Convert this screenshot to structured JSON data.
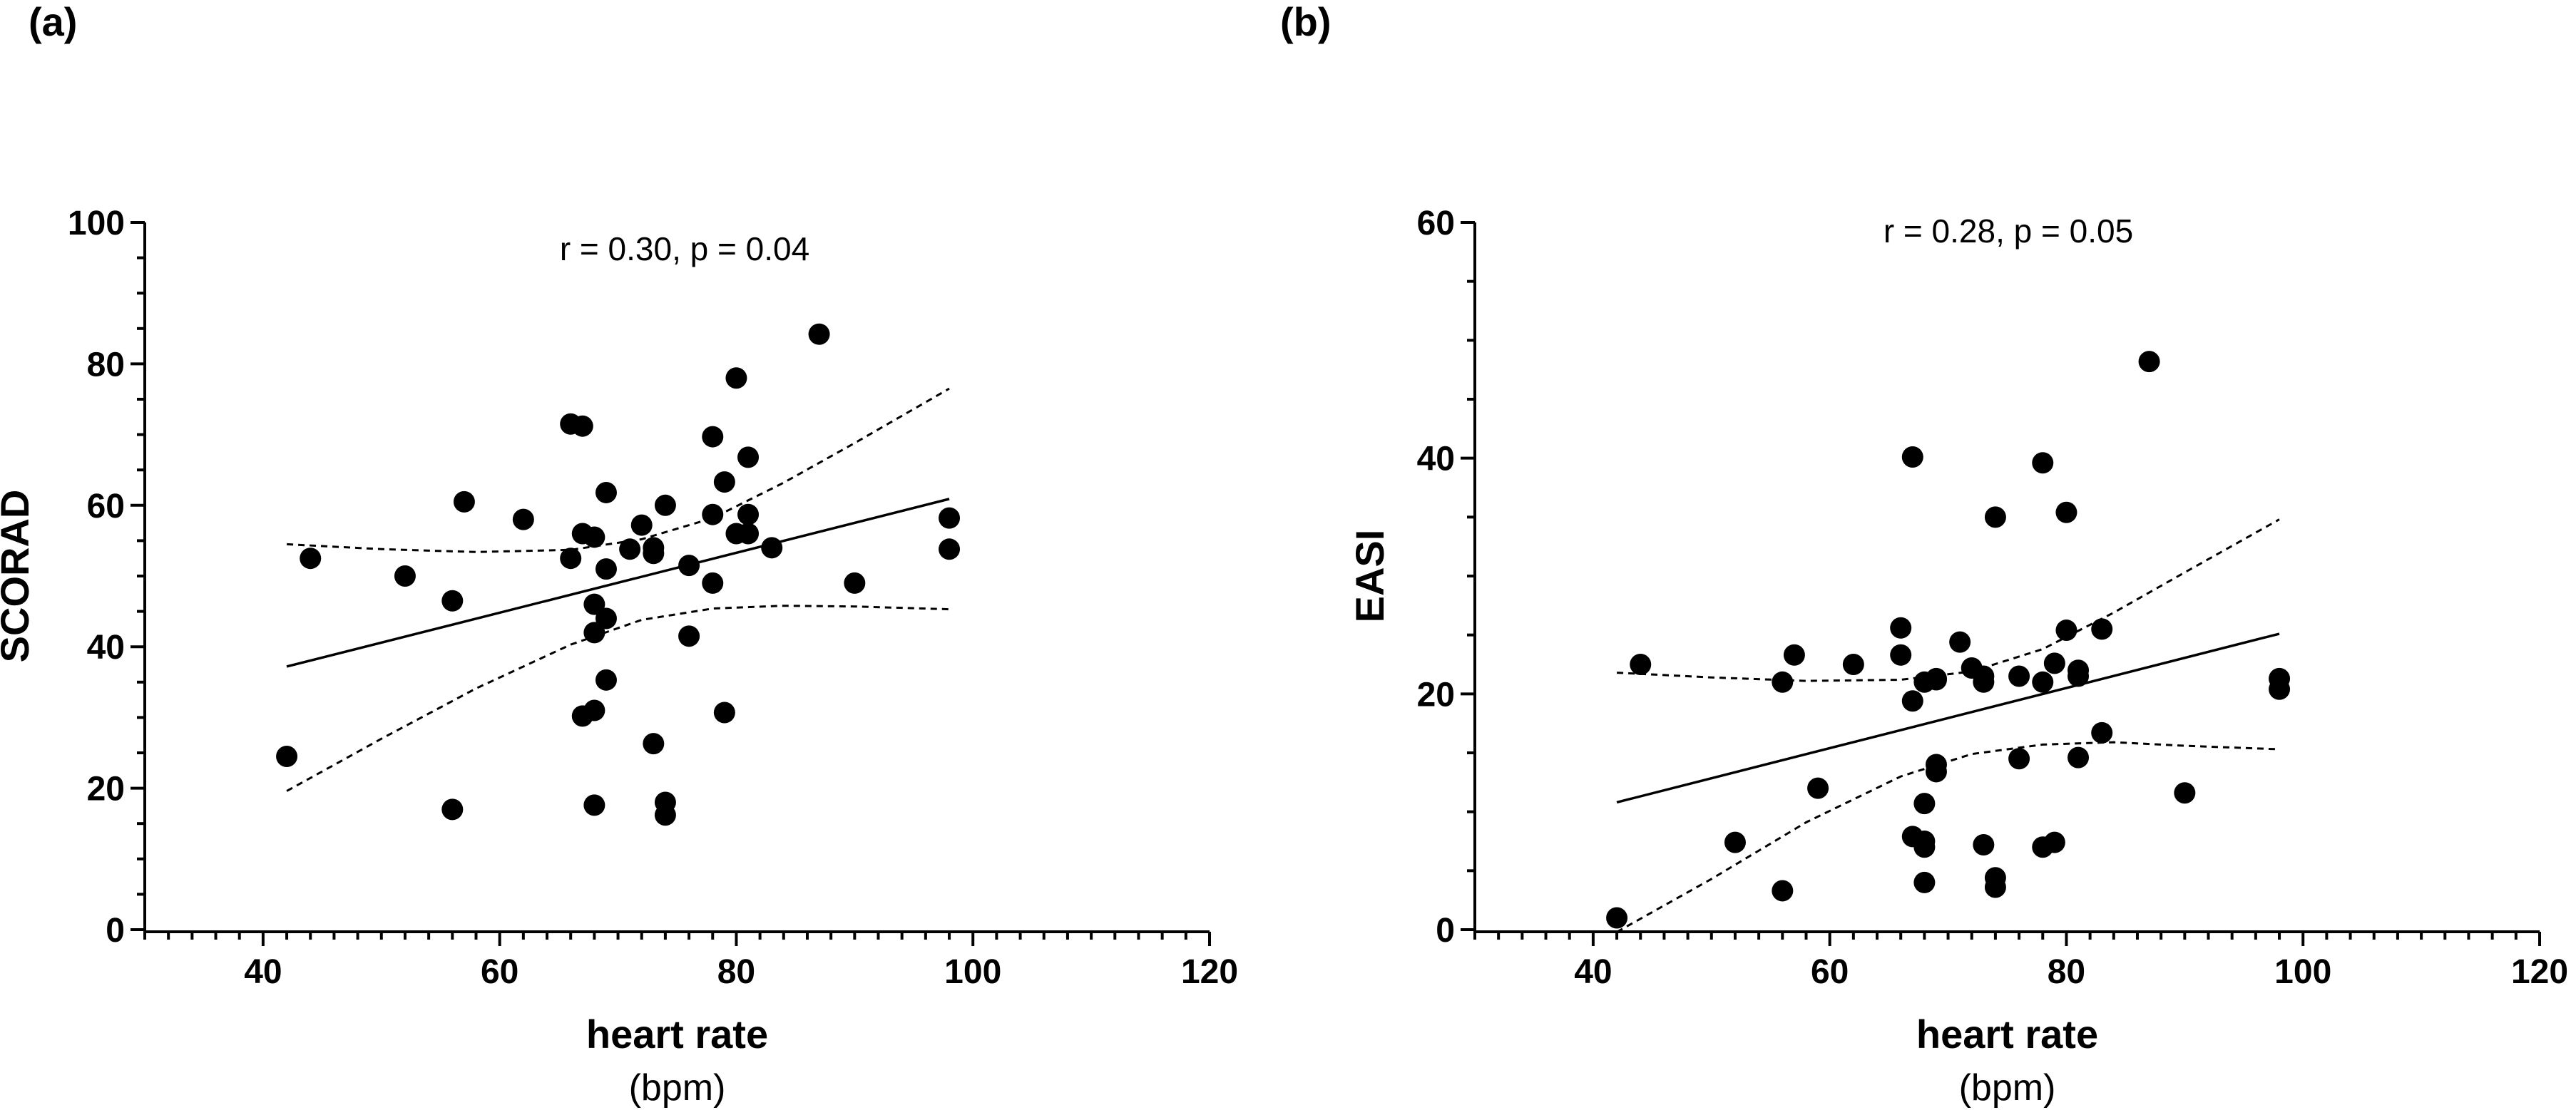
{
  "chart_data": [
    {
      "type": "scatter",
      "panel_label": "(a)",
      "annotation": "r = 0.30, p = 0.04",
      "xlabel": "heart rate",
      "xunit": "(bpm)",
      "ylabel": "SCORAD",
      "xlim": [
        30,
        120
      ],
      "ylim": [
        0,
        100
      ],
      "xticks": [
        40,
        60,
        80,
        100,
        120
      ],
      "yticks": [
        0,
        20,
        40,
        60,
        80,
        100
      ],
      "xtick_labels": [
        "40",
        "60",
        "80",
        "100",
        "120"
      ],
      "ytick_labels": [
        "0",
        "20",
        "40",
        "60",
        "80",
        "100"
      ],
      "points": [
        [
          42,
          24.5
        ],
        [
          44,
          52.5
        ],
        [
          52,
          50
        ],
        [
          56,
          46.5
        ],
        [
          56,
          17
        ],
        [
          57,
          60.5
        ],
        [
          62,
          58
        ],
        [
          66,
          71.5
        ],
        [
          66,
          52.5
        ],
        [
          67,
          71.2
        ],
        [
          67,
          56
        ],
        [
          67,
          30.2
        ],
        [
          68,
          55.5
        ],
        [
          68,
          46
        ],
        [
          68,
          42
        ],
        [
          68,
          31
        ],
        [
          68,
          17.6
        ],
        [
          69,
          61.8
        ],
        [
          69,
          51
        ],
        [
          69,
          44
        ],
        [
          69,
          35.3
        ],
        [
          71,
          53.8
        ],
        [
          72,
          57.2
        ],
        [
          73,
          54
        ],
        [
          73,
          53.2
        ],
        [
          73,
          26.3
        ],
        [
          74,
          60
        ],
        [
          74,
          18
        ],
        [
          74,
          16.2
        ],
        [
          76,
          51.5
        ],
        [
          76,
          41.5
        ],
        [
          78,
          69.7
        ],
        [
          78,
          58.7
        ],
        [
          78,
          49
        ],
        [
          79,
          63.3
        ],
        [
          79,
          30.7
        ],
        [
          80,
          78
        ],
        [
          80,
          56
        ],
        [
          81,
          66.8
        ],
        [
          81,
          58.7
        ],
        [
          81,
          56
        ],
        [
          83,
          54
        ],
        [
          87,
          84.2
        ],
        [
          90,
          49
        ],
        [
          98,
          58.2
        ],
        [
          98,
          53.8
        ]
      ],
      "regression": {
        "x": [
          42,
          98
        ],
        "y": [
          37.2,
          60.9
        ]
      },
      "ci_upper": {
        "x": [
          42,
          50,
          58,
          66,
          72,
          78,
          84,
          90,
          98
        ],
        "y": [
          54.5,
          53.8,
          53.4,
          53.7,
          55.2,
          58.2,
          63.2,
          68.8,
          76.5
        ]
      },
      "ci_lower": {
        "x": [
          42,
          50,
          58,
          66,
          72,
          78,
          84,
          90,
          98
        ],
        "y": [
          19.6,
          27.0,
          34.1,
          40.3,
          43.8,
          45.4,
          45.8,
          45.7,
          45.3
        ]
      }
    },
    {
      "type": "scatter",
      "panel_label": "(b)",
      "annotation": "r = 0.28, p = 0.05",
      "xlabel": "heart rate",
      "xunit": "(bpm)",
      "ylabel": "EASI",
      "xlim": [
        30,
        120
      ],
      "ylim": [
        0,
        60
      ],
      "xticks": [
        40,
        60,
        80,
        100,
        120
      ],
      "yticks": [
        0,
        20,
        40,
        60
      ],
      "xtick_labels": [
        "40",
        "60",
        "80",
        "100",
        "120"
      ],
      "ytick_labels": [
        "0",
        "20",
        "40",
        "60"
      ],
      "points": [
        [
          42,
          1
        ],
        [
          44,
          22.5
        ],
        [
          52,
          7.4
        ],
        [
          56,
          21
        ],
        [
          56,
          3.3
        ],
        [
          57,
          23.3
        ],
        [
          59,
          12
        ],
        [
          62,
          22.5
        ],
        [
          66,
          25.6
        ],
        [
          66,
          23.3
        ],
        [
          67,
          40.1
        ],
        [
          67,
          19.4
        ],
        [
          67,
          7.9
        ],
        [
          68,
          21
        ],
        [
          68,
          10.7
        ],
        [
          68,
          7.5
        ],
        [
          68,
          7
        ],
        [
          68,
          4
        ],
        [
          69,
          21.3
        ],
        [
          69,
          21.2
        ],
        [
          69,
          14
        ],
        [
          69,
          13.4
        ],
        [
          71,
          24.4
        ],
        [
          72,
          22.2
        ],
        [
          73,
          21.5
        ],
        [
          73,
          21
        ],
        [
          73,
          7.2
        ],
        [
          74,
          35
        ],
        [
          74,
          4.4
        ],
        [
          74,
          3.6
        ],
        [
          76,
          21.5
        ],
        [
          76,
          14.5
        ],
        [
          78,
          39.6
        ],
        [
          78,
          21
        ],
        [
          78,
          7
        ],
        [
          79,
          22.6
        ],
        [
          79,
          7.4
        ],
        [
          80,
          35.4
        ],
        [
          80,
          25.4
        ],
        [
          81,
          22
        ],
        [
          81,
          21.5
        ],
        [
          81,
          14.6
        ],
        [
          83,
          25.5
        ],
        [
          83,
          16.7
        ],
        [
          87,
          48.2
        ],
        [
          90,
          11.6
        ],
        [
          98,
          21.3
        ],
        [
          98,
          20.4
        ]
      ],
      "regression": {
        "x": [
          42,
          98
        ],
        "y": [
          10.8,
          25.1
        ]
      },
      "ci_upper": {
        "x": [
          42,
          50,
          58,
          66,
          72,
          78,
          84,
          90,
          98
        ],
        "y": [
          21.8,
          21.4,
          21.1,
          21.2,
          21.9,
          23.8,
          26.9,
          30.3,
          34.8
        ]
      },
      "ci_lower": {
        "x": [
          42,
          50,
          58,
          66,
          72,
          78,
          84,
          90,
          98
        ],
        "y": [
          -0.2,
          4.3,
          9.1,
          13.0,
          14.9,
          15.7,
          15.9,
          15.6,
          15.3
        ]
      }
    }
  ]
}
